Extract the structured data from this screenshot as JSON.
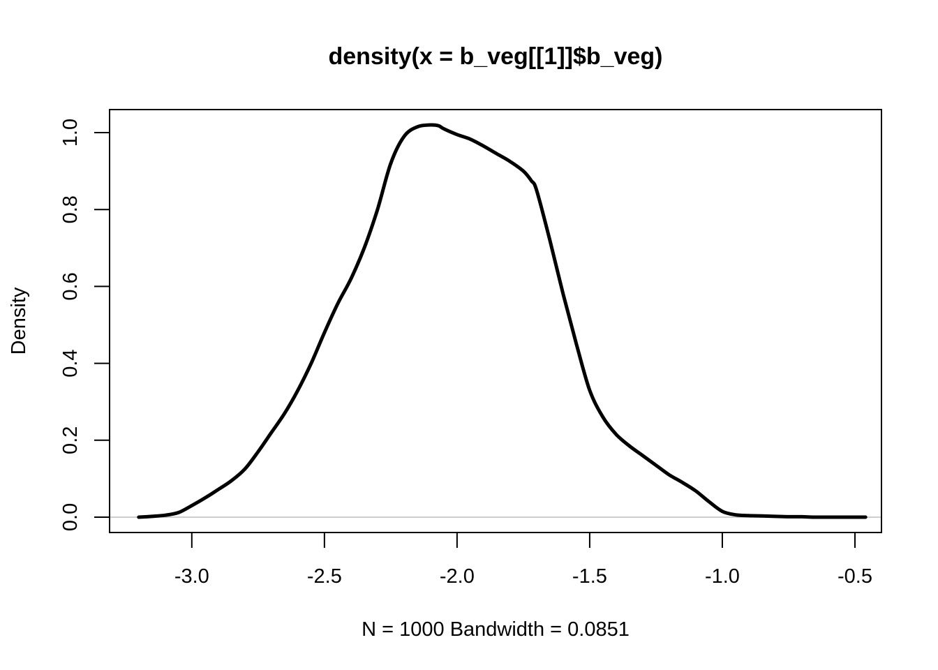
{
  "chart_data": {
    "type": "line",
    "title": "density(x = b_veg[[1]]$b_veg)",
    "xlabel": "N = 1000   Bandwidth = 0.0851",
    "ylabel": "Density",
    "xlim": [
      -3.31,
      -0.4
    ],
    "ylim": [
      -0.04,
      1.06
    ],
    "x_ticks": [
      -3.0,
      -2.5,
      -2.0,
      -1.5,
      -1.0,
      -0.5
    ],
    "x_tick_labels": [
      "-3.0",
      "-2.5",
      "-2.0",
      "-1.5",
      "-1.0",
      "-0.5"
    ],
    "y_ticks": [
      0.0,
      0.2,
      0.4,
      0.6,
      0.8,
      1.0
    ],
    "y_tick_labels": [
      "0.0",
      "0.2",
      "0.4",
      "0.6",
      "0.8",
      "1.0"
    ],
    "zero_line": true,
    "grid": false,
    "line_color": "#000000",
    "baseline_color": "#bebebe",
    "series": [
      {
        "x": [
          -3.2,
          -3.15,
          -3.1,
          -3.05,
          -3.0,
          -2.95,
          -2.9,
          -2.85,
          -2.8,
          -2.75,
          -2.7,
          -2.65,
          -2.6,
          -2.55,
          -2.5,
          -2.45,
          -2.4,
          -2.35,
          -2.3,
          -2.25,
          -2.2,
          -2.15,
          -2.1,
          -2.07,
          -2.05,
          -2.0,
          -1.95,
          -1.9,
          -1.85,
          -1.8,
          -1.75,
          -1.72,
          -1.7,
          -1.65,
          -1.6,
          -1.55,
          -1.5,
          -1.45,
          -1.4,
          -1.35,
          -1.3,
          -1.25,
          -1.2,
          -1.15,
          -1.1,
          -1.05,
          -1.0,
          -0.95,
          -0.9,
          -0.85,
          -0.8,
          -0.75,
          -0.7,
          -0.65,
          -0.6,
          -0.55,
          -0.5,
          -0.46
        ],
        "y": [
          0.0,
          0.002,
          0.005,
          0.012,
          0.03,
          0.05,
          0.072,
          0.095,
          0.125,
          0.17,
          0.22,
          0.27,
          0.33,
          0.4,
          0.48,
          0.555,
          0.62,
          0.7,
          0.8,
          0.92,
          0.99,
          1.015,
          1.02,
          1.018,
          1.01,
          0.995,
          0.983,
          0.965,
          0.945,
          0.925,
          0.9,
          0.875,
          0.85,
          0.72,
          0.58,
          0.45,
          0.33,
          0.26,
          0.215,
          0.185,
          0.16,
          0.135,
          0.11,
          0.09,
          0.068,
          0.04,
          0.015,
          0.006,
          0.004,
          0.003,
          0.002,
          0.001,
          0.001,
          0.0,
          0.0,
          0.0,
          0.0,
          0.0
        ]
      }
    ]
  }
}
